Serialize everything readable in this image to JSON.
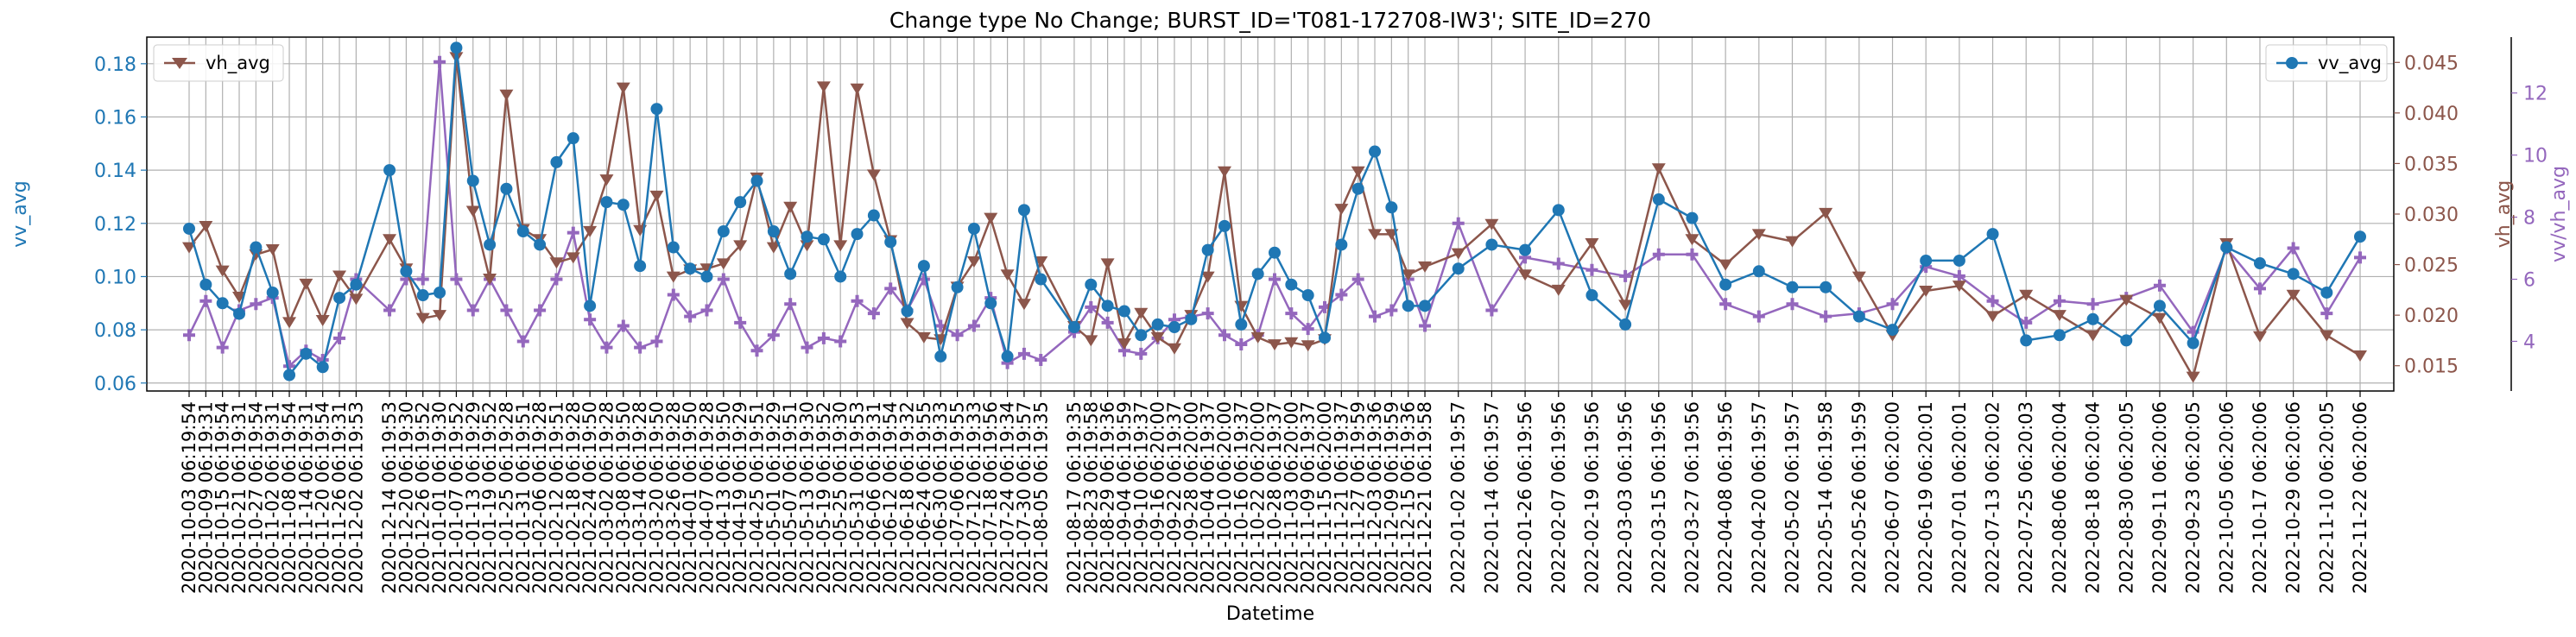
{
  "chart_data": {
    "type": "line",
    "title": "Change type No Change; BURST_ID='T081-172708-IW3'; SITE_ID=270",
    "xlabel": "Datetime",
    "ylabel_left": "vv_avg",
    "ylabel_right": "vh_avg",
    "ylabel_right2": "vv/vh_avg",
    "ylim_left": [
      0.057,
      0.19
    ],
    "ylim_right": [
      0.0125,
      0.0475
    ],
    "ylim_right2": [
      2.4,
      13.8
    ],
    "yticks_left": [
      "0.06",
      "0.08",
      "0.10",
      "0.12",
      "0.14",
      "0.16",
      "0.18"
    ],
    "yticks_right": [
      "0.015",
      "0.020",
      "0.025",
      "0.030",
      "0.035",
      "0.040",
      "0.045"
    ],
    "yticks_right2": [
      "4",
      "6",
      "8",
      "10",
      "12"
    ],
    "grid": true,
    "legends": [
      {
        "label": "vh_avg",
        "placement": "top-left"
      },
      {
        "label": "vv_avg",
        "placement": "top-right"
      }
    ],
    "colors": {
      "vv_avg": "#1f77b4",
      "vh_avg": "#8c564b",
      "ratio": "#9467bd",
      "grid": "#b0b0b0"
    },
    "tick_labels": [
      "2020-10-03 06:19:54",
      "2020-10-09 06:19:31",
      "2020-10-15 06:19:54",
      "2020-10-21 06:19:31",
      "2020-10-27 06:19:54",
      "2020-11-02 06:19:31",
      "2020-11-08 06:19:54",
      "2020-11-14 06:19:31",
      "2020-11-20 06:19:54",
      "2020-11-26 06:19:31",
      "2020-12-02 06:19:53",
      "2020-12-14 06:19:53",
      "2020-12-20 06:19:30",
      "2020-12-26 06:19:52",
      "2021-01-01 06:19:30",
      "2021-01-07 06:19:52",
      "2021-01-13 06:19:29",
      "2021-01-19 06:19:52",
      "2021-01-25 06:19:28",
      "2021-01-31 06:19:51",
      "2021-02-06 06:19:28",
      "2021-02-12 06:19:51",
      "2021-02-18 06:19:28",
      "2021-02-24 06:19:50",
      "2021-03-02 06:19:28",
      "2021-03-08 06:19:50",
      "2021-03-14 06:19:28",
      "2021-03-20 06:19:50",
      "2021-03-26 06:19:28",
      "2021-04-01 06:19:50",
      "2021-04-07 06:19:28",
      "2021-04-13 06:19:50",
      "2021-04-19 06:19:29",
      "2021-04-25 06:19:51",
      "2021-05-01 06:19:29",
      "2021-05-07 06:19:51",
      "2021-05-13 06:19:30",
      "2021-05-19 06:19:52",
      "2021-05-25 06:19:30",
      "2021-05-31 06:19:53",
      "2021-06-06 06:19:31",
      "2021-06-12 06:19:54",
      "2021-06-18 06:19:32",
      "2021-06-24 06:19:55",
      "2021-06-30 06:19:33",
      "2021-07-06 06:19:55",
      "2021-07-12 06:19:33",
      "2021-07-18 06:19:56",
      "2021-07-24 06:19:34",
      "2021-07-30 06:19:57",
      "2021-08-05 06:19:35",
      "2021-08-17 06:19:35",
      "2021-08-23 06:19:58",
      "2021-08-29 06:19:36",
      "2021-09-04 06:19:59",
      "2021-09-10 06:19:37",
      "2021-09-16 06:20:00",
      "2021-09-22 06:19:37",
      "2021-09-28 06:20:00",
      "2021-10-04 06:19:37",
      "2021-10-10 06:20:00",
      "2021-10-16 06:19:37",
      "2021-10-22 06:20:00",
      "2021-10-28 06:19:37",
      "2021-11-03 06:20:00",
      "2021-11-09 06:19:37",
      "2021-11-15 06:20:00",
      "2021-11-21 06:19:37",
      "2021-11-27 06:19:59",
      "2021-12-03 06:19:36",
      "2021-12-09 06:19:59",
      "2021-12-15 06:19:36",
      "2021-12-21 06:19:58",
      "2022-01-02 06:19:57",
      "2022-01-14 06:19:57",
      "2022-01-26 06:19:56",
      "2022-02-07 06:19:56",
      "2022-02-19 06:19:56",
      "2022-03-03 06:19:56",
      "2022-03-15 06:19:56",
      "2022-03-27 06:19:56",
      "2022-04-08 06:19:56",
      "2022-04-20 06:19:57",
      "2022-05-02 06:19:57",
      "2022-05-14 06:19:58",
      "2022-05-26 06:19:59",
      "2022-06-07 06:20:00",
      "2022-06-19 06:20:01",
      "2022-07-01 06:20:01",
      "2022-07-13 06:20:02",
      "2022-07-25 06:20:03",
      "2022-08-06 06:20:04",
      "2022-08-18 06:20:04",
      "2022-08-30 06:20:05",
      "2022-09-11 06:20:06",
      "2022-09-23 06:20:05",
      "2022-10-05 06:20:06",
      "2022-10-17 06:20:06",
      "2022-10-29 06:20:06",
      "2022-11-10 06:20:05",
      "2022-11-22 06:20:06"
    ],
    "x": [
      "2020-10-03",
      "2020-10-09",
      "2020-10-15",
      "2020-10-21",
      "2020-10-27",
      "2020-11-02",
      "2020-11-08",
      "2020-11-14",
      "2020-11-20",
      "2020-11-26",
      "2020-12-02",
      "2020-12-14",
      "2020-12-20",
      "2020-12-26",
      "2021-01-01",
      "2021-01-07",
      "2021-01-13",
      "2021-01-19",
      "2021-01-25",
      "2021-01-31",
      "2021-02-06",
      "2021-02-12",
      "2021-02-18",
      "2021-02-24",
      "2021-03-02",
      "2021-03-08",
      "2021-03-14",
      "2021-03-20",
      "2021-03-26",
      "2021-04-01",
      "2021-04-07",
      "2021-04-13",
      "2021-04-19",
      "2021-04-25",
      "2021-05-01",
      "2021-05-07",
      "2021-05-13",
      "2021-05-19",
      "2021-05-25",
      "2021-05-31",
      "2021-06-06",
      "2021-06-12",
      "2021-06-18",
      "2021-06-24",
      "2021-06-30",
      "2021-07-06",
      "2021-07-12",
      "2021-07-18",
      "2021-07-24",
      "2021-07-30",
      "2021-08-05",
      "2021-08-17",
      "2021-08-23",
      "2021-08-29",
      "2021-09-04",
      "2021-09-10",
      "2021-09-16",
      "2021-09-22",
      "2021-09-28",
      "2021-10-04",
      "2021-10-10",
      "2021-10-16",
      "2021-10-22",
      "2021-10-28",
      "2021-11-03",
      "2021-11-09",
      "2021-11-15",
      "2021-11-21",
      "2021-11-27",
      "2021-12-03",
      "2021-12-09",
      "2021-12-15",
      "2021-12-21",
      "2022-01-02",
      "2022-01-14",
      "2022-01-26",
      "2022-02-07",
      "2022-02-19",
      "2022-03-03",
      "2022-03-15",
      "2022-03-27",
      "2022-04-08",
      "2022-04-20",
      "2022-05-02",
      "2022-05-14",
      "2022-05-26",
      "2022-06-07",
      "2022-06-19",
      "2022-07-01",
      "2022-07-13",
      "2022-07-25",
      "2022-08-06",
      "2022-08-18",
      "2022-08-30",
      "2022-09-11",
      "2022-09-23",
      "2022-10-05",
      "2022-10-17",
      "2022-10-29",
      "2022-11-10",
      "2022-11-22"
    ],
    "series": [
      {
        "name": "vv_avg",
        "axis": "left",
        "marker": "circle",
        "values": [
          0.118,
          0.097,
          0.09,
          0.086,
          0.111,
          0.094,
          0.063,
          0.071,
          0.066,
          0.092,
          0.097,
          0.14,
          0.102,
          0.093,
          0.094,
          0.186,
          0.136,
          0.112,
          0.133,
          0.117,
          0.112,
          0.143,
          0.152,
          0.089,
          0.128,
          0.127,
          0.104,
          0.163,
          0.111,
          0.103,
          0.1,
          0.117,
          0.128,
          0.136,
          0.117,
          0.101,
          0.115,
          0.114,
          0.1,
          0.116,
          0.123,
          0.113,
          0.087,
          0.104,
          0.07,
          0.096,
          0.118,
          0.09,
          0.07,
          0.125,
          0.099,
          0.081,
          0.097,
          0.089,
          0.087,
          0.078,
          0.082,
          0.081,
          0.084,
          0.11,
          0.119,
          0.082,
          0.101,
          0.109,
          0.097,
          0.093,
          0.077,
          0.112,
          0.133,
          0.147,
          0.126,
          0.089,
          0.089,
          0.103,
          0.112,
          0.11,
          0.125,
          0.093,
          0.082,
          0.129,
          0.122,
          0.097,
          0.102,
          0.096,
          0.096,
          0.085,
          0.08,
          0.106,
          0.106,
          0.116,
          0.076,
          0.078,
          0.084,
          0.076,
          0.089,
          0.075,
          0.111,
          0.105,
          0.101,
          0.094,
          0.115
        ]
      },
      {
        "name": "vh_avg",
        "axis": "right",
        "marker": "triangle_down",
        "values": [
          0.0267,
          0.0288,
          0.0244,
          0.0218,
          0.026,
          0.0265,
          0.0193,
          0.0231,
          0.0195,
          0.0239,
          0.0216,
          0.0275,
          0.0246,
          0.0197,
          0.02,
          0.0455,
          0.0303,
          0.0236,
          0.0418,
          0.0285,
          0.0275,
          0.0252,
          0.0257,
          0.0283,
          0.0334,
          0.0425,
          0.0284,
          0.0318,
          0.0238,
          0.0245,
          0.0246,
          0.0251,
          0.0269,
          0.0336,
          0.0267,
          0.0307,
          0.0269,
          0.0426,
          0.0269,
          0.0424,
          0.0339,
          0.0274,
          0.0192,
          0.0178,
          0.0176,
          0.0228,
          0.0253,
          0.0296,
          0.024,
          0.0211,
          0.0253,
          0.0189,
          0.0175,
          0.0251,
          0.0172,
          0.0202,
          0.0178,
          0.0167,
          0.02,
          0.0238,
          0.0342,
          0.0209,
          0.0178,
          0.0171,
          0.0173,
          0.017,
          0.0176,
          0.0305,
          0.0342,
          0.028,
          0.028,
          0.024,
          0.0248,
          0.0261,
          0.029,
          0.024,
          0.0225,
          0.0271,
          0.021,
          0.0345,
          0.0275,
          0.025,
          0.028,
          0.0273,
          0.0301,
          0.0238,
          0.018,
          0.0224,
          0.0229,
          0.0199,
          0.022,
          0.02,
          0.018,
          0.0215,
          0.0197,
          0.0139,
          0.0271,
          0.0179,
          0.022,
          0.018,
          0.016
        ]
      },
      {
        "name": "vv/vh_avg",
        "axis": "right2",
        "marker": "plus",
        "values": [
          4.2,
          5.3,
          3.8,
          5.0,
          5.2,
          5.4,
          3.2,
          3.7,
          3.4,
          4.1,
          6.0,
          5.0,
          6.0,
          6.0,
          13.0,
          6.0,
          5.0,
          6.0,
          5.0,
          4.0,
          5.0,
          6.0,
          7.5,
          4.7,
          3.8,
          4.5,
          3.8,
          4.0,
          5.5,
          4.8,
          5.0,
          6.0,
          4.6,
          3.7,
          4.2,
          5.2,
          3.8,
          4.1,
          4.0,
          5.3,
          4.9,
          5.7,
          5.0,
          6.0,
          4.5,
          4.2,
          4.5,
          5.4,
          3.3,
          3.6,
          3.4,
          4.3,
          5.1,
          4.6,
          3.7,
          3.6,
          4.1,
          4.7,
          4.8,
          4.9,
          4.2,
          3.9,
          4.2,
          6.0,
          4.9,
          4.4,
          5.1,
          5.5,
          6.0,
          4.8,
          5.0,
          6.0,
          4.5,
          7.8,
          5.0,
          6.7,
          6.5,
          6.3,
          6.1,
          6.8,
          6.8,
          5.2,
          4.8,
          5.2,
          4.8,
          4.9,
          5.2,
          6.4,
          6.1,
          5.3,
          4.6,
          5.3,
          5.2,
          5.4,
          5.8,
          4.3,
          7.0,
          5.7,
          7.0,
          4.9,
          6.7
        ]
      }
    ]
  }
}
